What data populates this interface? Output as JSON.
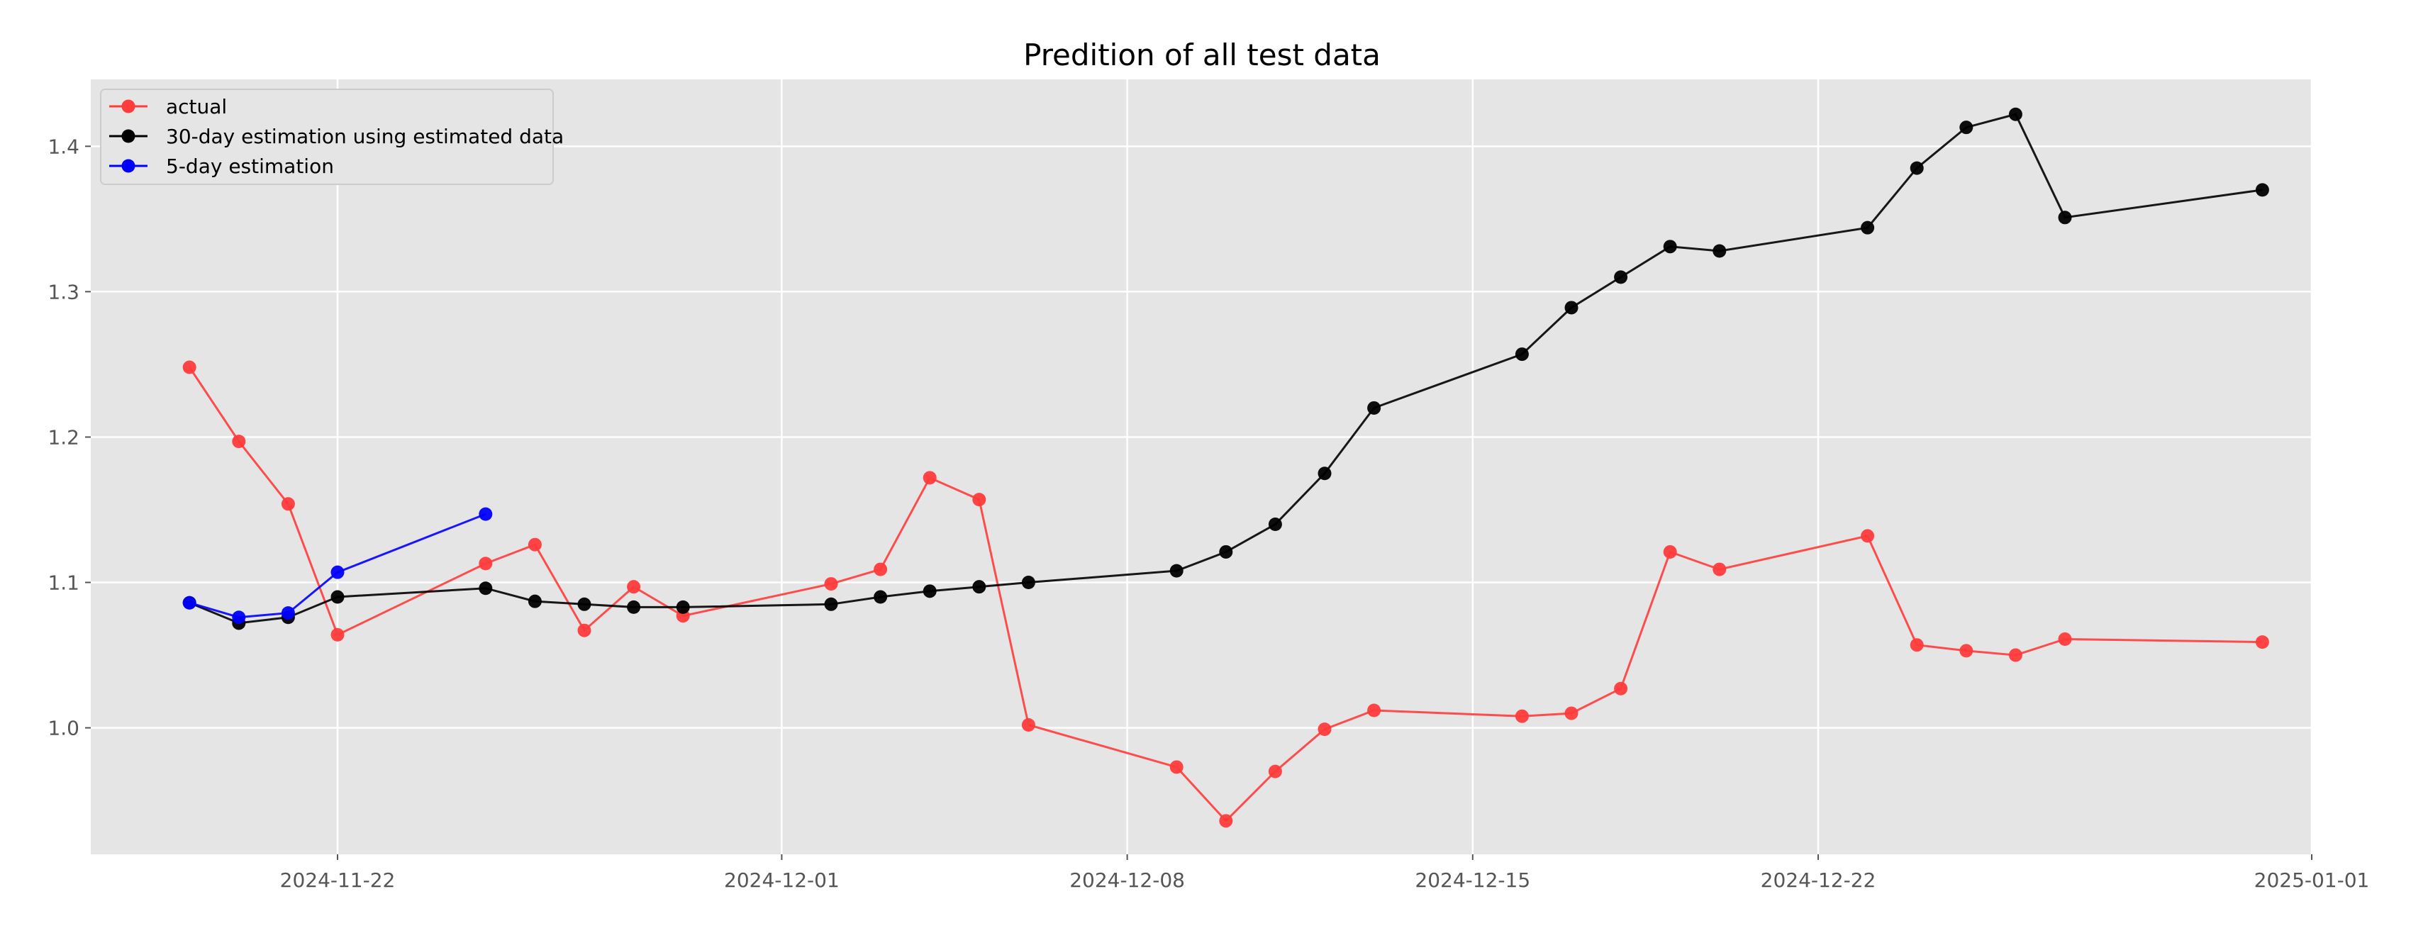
{
  "chart_data": {
    "type": "line",
    "title": "Predition of all test data",
    "xlabel": "",
    "ylabel": "",
    "x_ticks": [
      "2024-11-22",
      "2024-12-01",
      "2024-12-08",
      "2024-12-15",
      "2024-12-22",
      "2025-01-01"
    ],
    "y_ticks": [
      "1.0",
      "1.1",
      "1.2",
      "1.3",
      "1.4"
    ],
    "xlim": [
      "2024-11-17",
      "2025-01-01"
    ],
    "ylim": [
      0.913,
      1.446
    ],
    "grid": true,
    "legend_position": "top-left",
    "series": [
      {
        "name": "actual",
        "color": "#ff3b3b",
        "points": [
          [
            "2024-11-19",
            1.248
          ],
          [
            "2024-11-20",
            1.197
          ],
          [
            "2024-11-21",
            1.154
          ],
          [
            "2024-11-22",
            1.064
          ],
          [
            "2024-11-25",
            1.113
          ],
          [
            "2024-11-26",
            1.126
          ],
          [
            "2024-11-27",
            1.067
          ],
          [
            "2024-11-28",
            1.097
          ],
          [
            "2024-11-29",
            1.077
          ],
          [
            "2024-12-02",
            1.099
          ],
          [
            "2024-12-03",
            1.109
          ],
          [
            "2024-12-04",
            1.172
          ],
          [
            "2024-12-05",
            1.157
          ],
          [
            "2024-12-06",
            1.002
          ],
          [
            "2024-12-09",
            0.973
          ],
          [
            "2024-12-10",
            0.936
          ],
          [
            "2024-12-11",
            0.97
          ],
          [
            "2024-12-12",
            0.999
          ],
          [
            "2024-12-13",
            1.012
          ],
          [
            "2024-12-16",
            1.008
          ],
          [
            "2024-12-17",
            1.01
          ],
          [
            "2024-12-18",
            1.027
          ],
          [
            "2024-12-19",
            1.121
          ],
          [
            "2024-12-20",
            1.109
          ],
          [
            "2024-12-23",
            1.132
          ],
          [
            "2024-12-24",
            1.057
          ],
          [
            "2024-12-25",
            1.053
          ],
          [
            "2024-12-26",
            1.05
          ],
          [
            "2024-12-27",
            1.061
          ],
          [
            "2024-12-31",
            1.059
          ]
        ]
      },
      {
        "name": "30-day estimation using estimated data",
        "color": "#000000",
        "points": [
          [
            "2024-11-19",
            1.086
          ],
          [
            "2024-11-20",
            1.072
          ],
          [
            "2024-11-21",
            1.076
          ],
          [
            "2024-11-22",
            1.09
          ],
          [
            "2024-11-25",
            1.096
          ],
          [
            "2024-11-26",
            1.087
          ],
          [
            "2024-11-27",
            1.085
          ],
          [
            "2024-11-28",
            1.083
          ],
          [
            "2024-11-29",
            1.083
          ],
          [
            "2024-12-02",
            1.085
          ],
          [
            "2024-12-03",
            1.09
          ],
          [
            "2024-12-04",
            1.094
          ],
          [
            "2024-12-05",
            1.097
          ],
          [
            "2024-12-06",
            1.1
          ],
          [
            "2024-12-09",
            1.108
          ],
          [
            "2024-12-10",
            1.121
          ],
          [
            "2024-12-11",
            1.14
          ],
          [
            "2024-12-12",
            1.175
          ],
          [
            "2024-12-13",
            1.22
          ],
          [
            "2024-12-16",
            1.257
          ],
          [
            "2024-12-17",
            1.289
          ],
          [
            "2024-12-18",
            1.31
          ],
          [
            "2024-12-19",
            1.331
          ],
          [
            "2024-12-20",
            1.328
          ],
          [
            "2024-12-23",
            1.344
          ],
          [
            "2024-12-24",
            1.385
          ],
          [
            "2024-12-25",
            1.413
          ],
          [
            "2024-12-26",
            1.422
          ],
          [
            "2024-12-27",
            1.351
          ],
          [
            "2024-12-31",
            1.37
          ]
        ]
      },
      {
        "name": "5-day estimation",
        "color": "#0000ff",
        "points": [
          [
            "2024-11-19",
            1.086
          ],
          [
            "2024-11-20",
            1.076
          ],
          [
            "2024-11-21",
            1.079
          ],
          [
            "2024-11-22",
            1.107
          ],
          [
            "2024-11-25",
            1.147
          ]
        ]
      }
    ]
  }
}
